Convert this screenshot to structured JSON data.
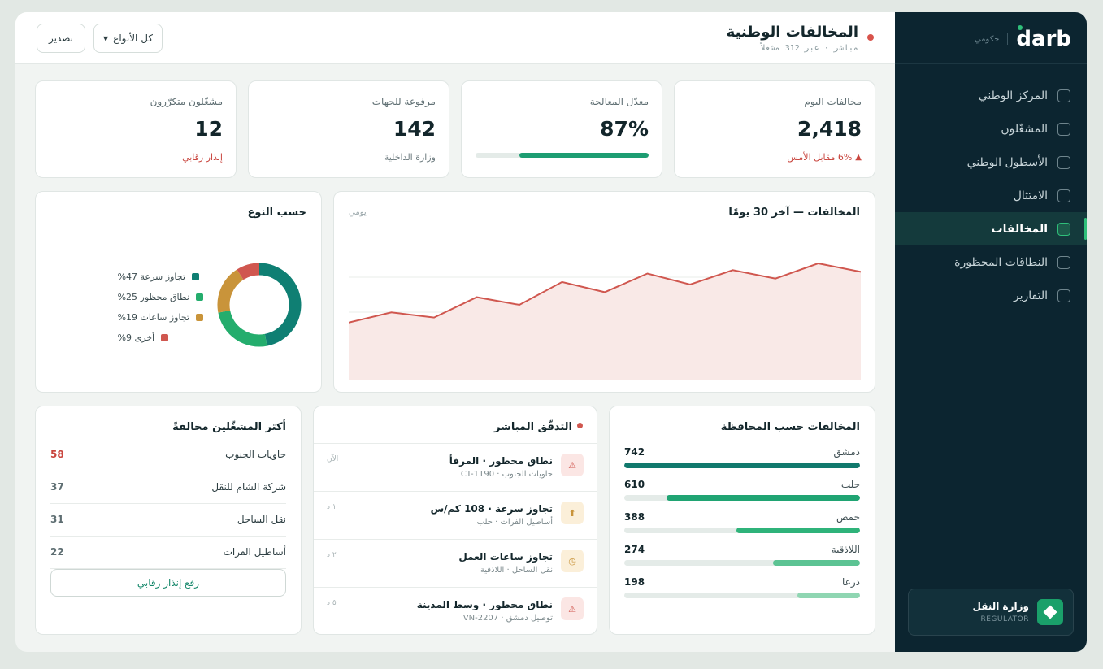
{
  "sidebar": {
    "brand": "darb",
    "brand_sub": "حكومي",
    "items": [
      {
        "label": "المركز الوطني"
      },
      {
        "label": "المشغّلون"
      },
      {
        "label": "الأسطول الوطني"
      },
      {
        "label": "الامتثال"
      },
      {
        "label": "المخالفات",
        "active": true
      },
      {
        "label": "النطاقات المحظورة"
      },
      {
        "label": "التقارير"
      }
    ],
    "org": {
      "name": "وزارة النقل",
      "role": "REGULATOR"
    }
  },
  "header": {
    "title": "المخالفات الوطنية",
    "subtitle": "مباشر · عبر 312 مشغلاً",
    "filter_label": "كل الأنواع",
    "export_label": "تصدير"
  },
  "kpis": {
    "today": {
      "label": "مخالفات اليوم",
      "value": "2,418",
      "foot": "6% مقابل الأمس"
    },
    "rate": {
      "label": "معدّل المعالجة",
      "value": "87%",
      "progress": 0.87
    },
    "escalated": {
      "label": "مرفوعة للجهات",
      "value": "142",
      "foot": "وزارة الداخلية"
    },
    "repeat": {
      "label": "مشغّلون متكرّرون",
      "value": "12",
      "foot": "إنذار رقابي"
    }
  },
  "trend": {
    "title": "المخالفات — آخر 30 يومًا",
    "sub": "يومي"
  },
  "by_type": {
    "title": "حسب النوع",
    "legend": [
      {
        "label": "تجاوز سرعة 47%",
        "color": "#0f7f73"
      },
      {
        "label": "نطاق محظور 25%",
        "color": "#24ad6d"
      },
      {
        "label": "تجاوز ساعات 19%",
        "color": "#c9943a"
      },
      {
        "label": "أخرى 9%",
        "color": "#d0574f"
      }
    ]
  },
  "chart_data": [
    {
      "type": "area",
      "title": "المخالفات — آخر 30 يومًا",
      "x": [
        1,
        2,
        3,
        4,
        5,
        6,
        7,
        8,
        9,
        10,
        11,
        12,
        13
      ],
      "values": [
        0.3,
        0.42,
        0.36,
        0.6,
        0.51,
        0.78,
        0.66,
        0.88,
        0.75,
        0.92,
        0.82,
        1.0,
        0.9
      ],
      "grid": true,
      "color": "#d0574f"
    },
    {
      "type": "pie",
      "title": "حسب النوع",
      "categories": [
        "تجاوز سرعة",
        "نطاق محظور",
        "تجاوز ساعات",
        "أخرى"
      ],
      "values": [
        47,
        25,
        19,
        9
      ],
      "colors": [
        "#0f7f73",
        "#24ad6d",
        "#c9943a",
        "#d0574f"
      ]
    },
    {
      "type": "bar",
      "title": "المخالفات حسب المحافظة",
      "categories": [
        "دمشق",
        "حلب",
        "حمص",
        "اللاذقية",
        "درعا"
      ],
      "values": [
        742,
        610,
        388,
        274,
        198
      ],
      "colors": [
        "#11796d",
        "#20a473",
        "#2fb37a",
        "#5cc393",
        "#8fd6b2"
      ]
    }
  ],
  "governorates": {
    "title": "المخالفات حسب المحافظة",
    "rows": [
      {
        "name": "دمشق",
        "value": "742"
      },
      {
        "name": "حلب",
        "value": "610"
      },
      {
        "name": "حمص",
        "value": "388"
      },
      {
        "name": "اللاذقية",
        "value": "274"
      },
      {
        "name": "درعا",
        "value": "198"
      }
    ]
  },
  "feed": {
    "title": "التدفّق المباشر",
    "items": [
      {
        "title": "نطاق محظور · المرفأ",
        "sub": "حاويات الجنوب · CT-1190",
        "time": "الآن",
        "icon": "warning-icon",
        "bg": "#fbe6e4",
        "fg": "#d0574f",
        "glyph": "⚠"
      },
      {
        "title": "تجاوز سرعة · 108 كم/س",
        "sub": "أساطيل الفرات · حلب",
        "time": "١ د",
        "icon": "speed-icon",
        "bg": "#fbefd9",
        "fg": "#c9943a",
        "glyph": "⬆"
      },
      {
        "title": "تجاوز ساعات العمل",
        "sub": "نقل الساحل · اللاذقية",
        "time": "٢ د",
        "icon": "clock-icon",
        "bg": "#fbefd9",
        "fg": "#c9943a",
        "glyph": "◷"
      },
      {
        "title": "نطاق محظور · وسط المدينة",
        "sub": "توصيل دمشق · VN-2207",
        "time": "٥ د",
        "icon": "warning-icon",
        "bg": "#fbe6e4",
        "fg": "#d0574f",
        "glyph": "⚠"
      }
    ]
  },
  "operators": {
    "title": "أكثر المشغّلين مخالفةً",
    "rows": [
      {
        "name": "حاويات الجنوب",
        "count": "58"
      },
      {
        "name": "شركة الشام للنقل",
        "count": "37"
      },
      {
        "name": "نقل الساحل",
        "count": "31"
      },
      {
        "name": "أساطيل الفرات",
        "count": "22"
      }
    ],
    "button": "رفع إنذار رقابي"
  }
}
